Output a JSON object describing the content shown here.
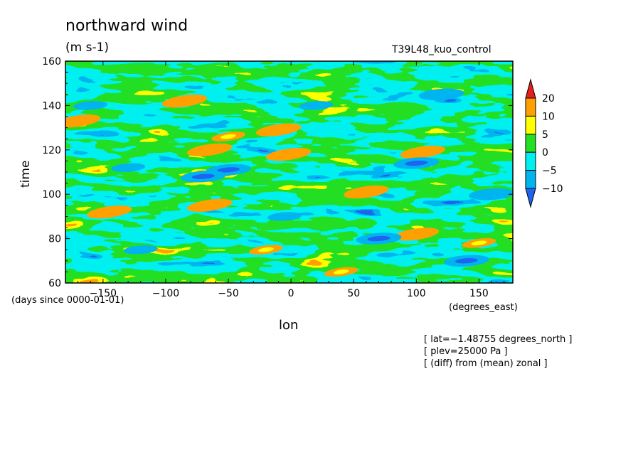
{
  "chart_data": {
    "type": "heatmap",
    "title": "northward wind",
    "units": "(m s-1)",
    "run_name": "T39L48_kuo_control",
    "xlabel": "lon",
    "ylabel": "time",
    "x_units": "(degrees_east)",
    "y_units": "(days since 0000-01-01)",
    "xlim": [
      -180,
      177
    ],
    "ylim": [
      60,
      160
    ],
    "x_ticks": [
      -150,
      -100,
      -50,
      0,
      50,
      100,
      150
    ],
    "x_tick_labels": [
      "−150",
      "−100",
      "−50",
      "0",
      "50",
      "100",
      "150"
    ],
    "y_ticks": [
      60,
      80,
      100,
      120,
      140,
      160
    ],
    "y_tick_labels": [
      "60",
      "80",
      "100",
      "120",
      "140",
      "160"
    ],
    "colorbar": {
      "levels": [
        -10,
        -5,
        0,
        5,
        10,
        20
      ],
      "level_labels": [
        "−10",
        "−5",
        "0",
        "5",
        "10",
        "20"
      ],
      "colors": [
        "#1e64f0",
        "#00b4f0",
        "#00f0f0",
        "#24e024",
        "#ffff00",
        "#ffa000",
        "#e61e1e"
      ],
      "extend": "both"
    },
    "streaks": [
      {
        "lon": -85,
        "time": 142,
        "value": 16
      },
      {
        "lon": -170,
        "time": 133,
        "value": 14
      },
      {
        "lon": -50,
        "time": 126,
        "value": 6
      },
      {
        "lon": -10,
        "time": 129,
        "value": 12
      },
      {
        "lon": -65,
        "time": 120,
        "value": 14
      },
      {
        "lon": -2,
        "time": 118,
        "value": 12
      },
      {
        "lon": 105,
        "time": 119,
        "value": 14
      },
      {
        "lon": -65,
        "time": 95,
        "value": 16
      },
      {
        "lon": -145,
        "time": 92,
        "value": 16
      },
      {
        "lon": 60,
        "time": 101,
        "value": 12
      },
      {
        "lon": 100,
        "time": 82,
        "value": 14
      },
      {
        "lon": 150,
        "time": 78,
        "value": 8
      },
      {
        "lon": -20,
        "time": 75,
        "value": 8
      },
      {
        "lon": 40,
        "time": 65,
        "value": 6
      },
      {
        "lon": -50,
        "time": 111,
        "value": -12
      },
      {
        "lon": -70,
        "time": 108,
        "value": -11
      },
      {
        "lon": 70,
        "time": 80,
        "value": -12
      },
      {
        "lon": 100,
        "time": 114,
        "value": -11
      },
      {
        "lon": 140,
        "time": 70,
        "value": -11
      },
      {
        "lon": -160,
        "time": 140,
        "value": -9
      },
      {
        "lon": 20,
        "time": 140,
        "value": -9
      },
      {
        "lon": 120,
        "time": 145,
        "value": -10
      },
      {
        "lon": -120,
        "time": 75,
        "value": -9
      },
      {
        "lon": 160,
        "time": 100,
        "value": -10
      },
      {
        "lon": -5,
        "time": 90,
        "value": -8
      },
      {
        "lon": -130,
        "time": 112,
        "value": -9
      }
    ]
  },
  "notes": [
    "[ lat=−1.48755 degrees_north ]",
    "[ plev=25000 Pa ]",
    "[ (diff) from (mean) zonal ]"
  ]
}
